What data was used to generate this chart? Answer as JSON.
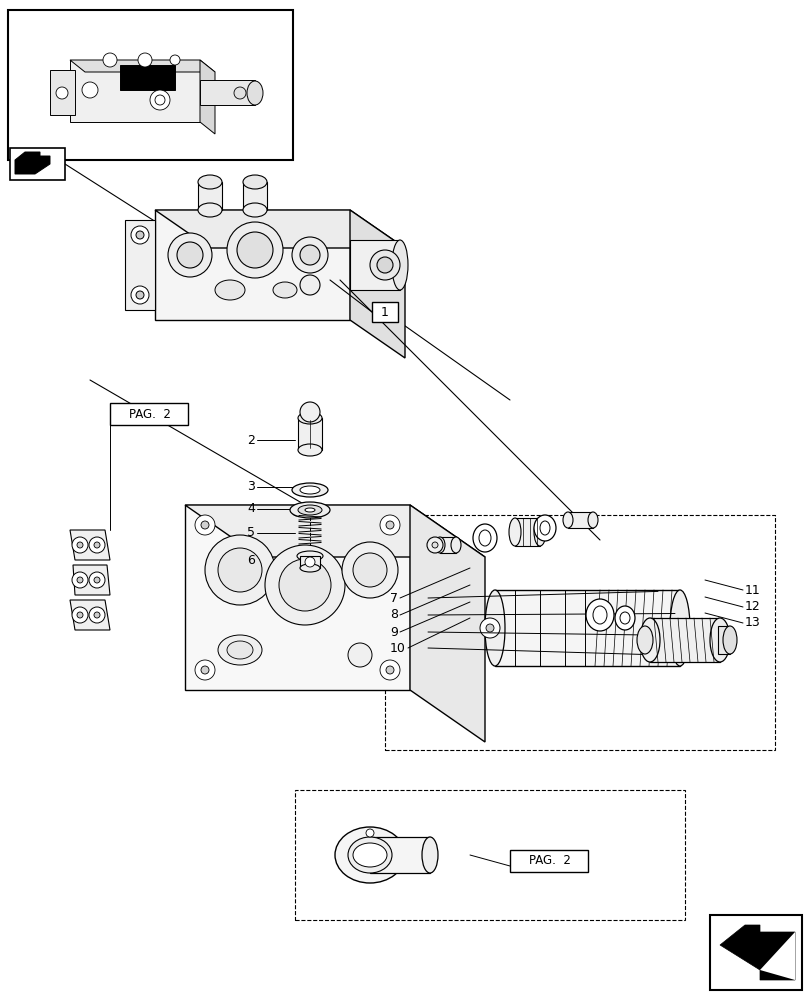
{
  "bg_color": "#ffffff",
  "line_color": "#000000",
  "fig_width": 8.12,
  "fig_height": 10.0,
  "dpi": 100
}
